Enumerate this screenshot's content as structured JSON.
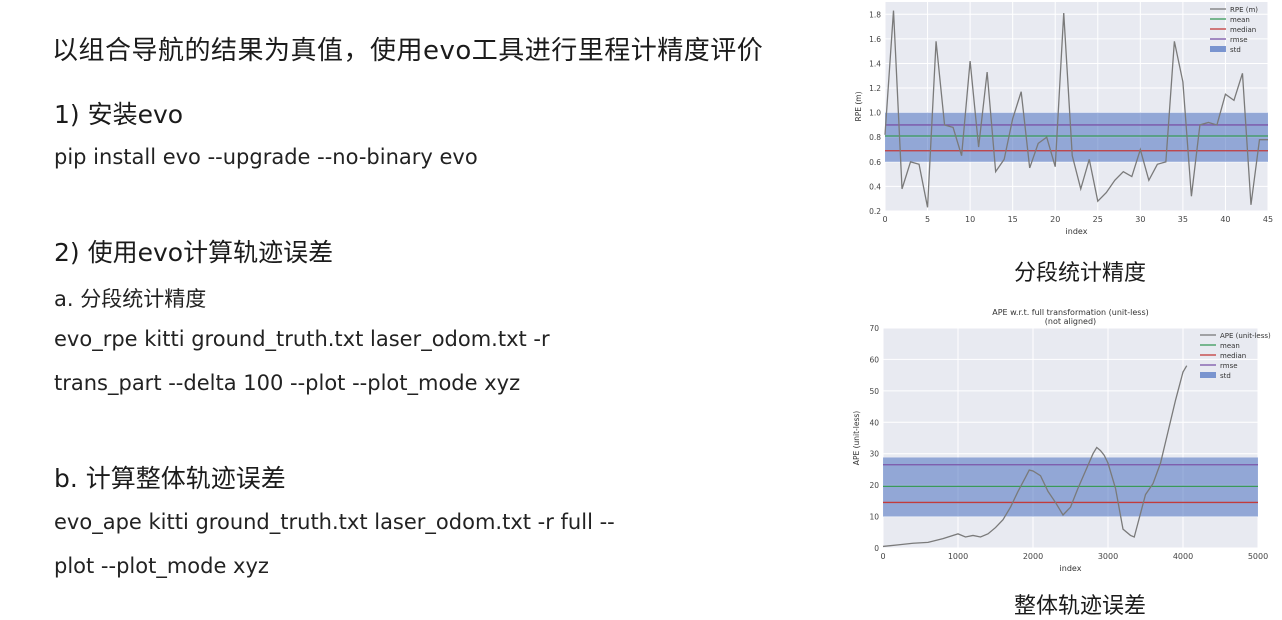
{
  "slide": {
    "title": "以组合导航的结果为真值，使用evo工具进行里程计精度评价",
    "step1_heading": "1) 安装evo",
    "step1_cmd": "pip install evo --upgrade --no-binary evo",
    "step2_heading": "2) 使用evo计算轨迹误差",
    "sub_a_heading": "a. 分段统计精度",
    "sub_a_cmd_line1": "evo_rpe kitti ground_truth.txt laser_odom.txt -r",
    "sub_a_cmd_line2": "trans_part --delta 100 --plot --plot_mode xyz",
    "sub_b_heading": "b. 计算整体轨迹误差",
    "sub_b_cmd_line1": "evo_ape kitti ground_truth.txt laser_odom.txt -r full --",
    "sub_b_cmd_line2": "plot --plot_mode xyz",
    "caption_top": "分段统计精度",
    "caption_bottom": "整体轨迹误差"
  },
  "colors": {
    "plot_bg": "#e8eaf1",
    "grid": "#ffffff",
    "series": "#7a7a7a",
    "mean": "#3a9a5a",
    "median": "#c23b3b",
    "rmse": "#7b55a8",
    "std_band": "#4a6fc0"
  },
  "chart_data": [
    {
      "type": "line",
      "title": "",
      "xlabel": "index",
      "ylabel": "RPE (m)",
      "xlim": [
        0,
        45
      ],
      "ylim": [
        0.2,
        1.9
      ],
      "xticks": [
        "0",
        "5",
        "10",
        "15",
        "20",
        "25",
        "30",
        "35",
        "40",
        "45"
      ],
      "yticks": [
        "0.2",
        "0.4",
        "0.6",
        "0.8",
        "1.0",
        "1.2",
        "1.4",
        "1.6",
        "1.8"
      ],
      "legend": [
        "RPE (m)",
        "mean",
        "median",
        "rmse",
        "std"
      ],
      "legend_position": "top-right",
      "grid": true,
      "series": [
        {
          "name": "RPE (m)",
          "x": [
            0,
            1,
            2,
            3,
            4,
            5,
            6,
            7,
            8,
            9,
            10,
            11,
            12,
            13,
            14,
            15,
            16,
            17,
            18,
            19,
            20,
            21,
            22,
            23,
            24,
            25,
            26,
            27,
            28,
            29,
            30,
            31,
            32,
            33,
            34,
            35,
            36,
            37,
            38,
            39,
            40,
            41,
            42,
            43,
            44,
            45
          ],
          "values": [
            0.82,
            1.83,
            0.38,
            0.6,
            0.58,
            0.23,
            1.58,
            0.9,
            0.88,
            0.65,
            1.42,
            0.72,
            1.33,
            0.52,
            0.62,
            0.95,
            1.17,
            0.55,
            0.75,
            0.8,
            0.56,
            1.81,
            0.65,
            0.38,
            0.62,
            0.28,
            0.35,
            0.45,
            0.52,
            0.48,
            0.7,
            0.45,
            0.58,
            0.6,
            1.58,
            1.25,
            0.32,
            0.9,
            0.92,
            0.9,
            1.15,
            1.1,
            1.32,
            0.25,
            0.78,
            0.78
          ]
        }
      ],
      "mean": 0.81,
      "median": 0.69,
      "rmse": 0.9,
      "std_band": [
        0.6,
        1.0
      ]
    },
    {
      "type": "line",
      "title": "APE w.r.t. full transformation (unit-less)",
      "subtitle": "(not aligned)",
      "xlabel": "index",
      "ylabel": "APE (unit-less)",
      "xlim": [
        0,
        5000
      ],
      "ylim": [
        0,
        70
      ],
      "xticks": [
        "0",
        "1000",
        "2000",
        "3000",
        "4000",
        "5000"
      ],
      "yticks": [
        "0",
        "10",
        "20",
        "30",
        "40",
        "50",
        "60",
        "70"
      ],
      "legend": [
        "APE (unit-less)",
        "mean",
        "median",
        "rmse",
        "std"
      ],
      "legend_position": "top-right",
      "grid": true,
      "series": [
        {
          "name": "APE (unit-less)",
          "x": [
            0,
            200,
            400,
            600,
            800,
            1000,
            1100,
            1200,
            1300,
            1400,
            1500,
            1600,
            1700,
            1800,
            1900,
            1950,
            2000,
            2100,
            2200,
            2300,
            2400,
            2500,
            2600,
            2700,
            2800,
            2850,
            2900,
            2950,
            3000,
            3100,
            3200,
            3300,
            3350,
            3400,
            3500,
            3600,
            3700,
            3800,
            3900,
            4000,
            4050
          ],
          "values": [
            0.5,
            1,
            1.5,
            1.8,
            3,
            4.5,
            3.5,
            4,
            3.5,
            4.5,
            6.5,
            9,
            13,
            18,
            22.5,
            24.8,
            24.5,
            23,
            18,
            14.5,
            10.5,
            13,
            19,
            24.5,
            30,
            32,
            31,
            29.5,
            27,
            19,
            6,
            4,
            3.5,
            8,
            17,
            20.5,
            27,
            37,
            47,
            56,
            58
          ]
        }
      ],
      "mean": 19.6,
      "median": 14.5,
      "rmse": 26.5,
      "std_band": [
        10,
        28.8
      ]
    }
  ]
}
